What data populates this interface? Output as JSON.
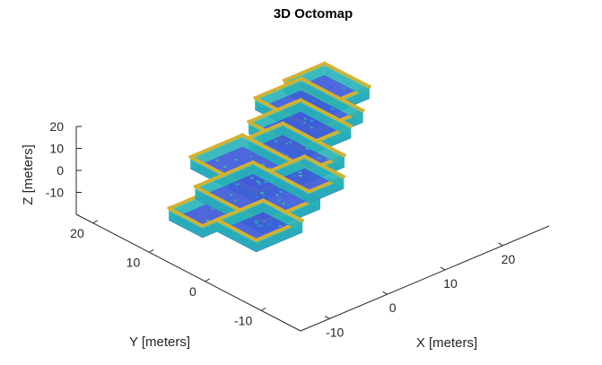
{
  "chart_data": {
    "type": "scatter",
    "subtype": "3d-voxel-occupancy-map",
    "title": "3D Octomap",
    "xlabel": "X [meters]",
    "ylabel": "Y [meters]",
    "zlabel": "Z [meters]",
    "x_ticks": [
      "-10",
      "0",
      "10",
      "20"
    ],
    "y_ticks": [
      "-10",
      "0",
      "10",
      "20"
    ],
    "z_ticks": [
      "-10",
      "0",
      "10",
      "20"
    ],
    "xlim": [
      -15,
      28
    ],
    "ylim": [
      -17,
      23
    ],
    "zlim": [
      -20,
      20
    ],
    "grid": false,
    "colormap": [
      "#3b4fd6",
      "#3f66e0",
      "#2f86d8",
      "#22b0c0",
      "#3cc39a",
      "#c9b43a",
      "#e0b52e"
    ],
    "floor_color": "#3f5ad9",
    "wall_color": "#d8b02c",
    "rooms": [
      {
        "x0": -14.5,
        "x1": -8,
        "y0": 1,
        "y1": 7
      },
      {
        "x0": -12,
        "x1": -4,
        "y0": -6,
        "y1": 1
      },
      {
        "x0": -8,
        "x1": 2,
        "y0": -3,
        "y1": 9
      },
      {
        "x0": -3,
        "x1": 6,
        "y0": 3,
        "y1": 15
      },
      {
        "x0": 2,
        "x1": 8,
        "y0": -1,
        "y1": 6
      },
      {
        "x0": 6,
        "x1": 12,
        "y0": 3,
        "y1": 14
      },
      {
        "x0": 9,
        "x1": 18,
        "y0": 8,
        "y1": 17
      },
      {
        "x0": 14,
        "x1": 22,
        "y0": 10,
        "y1": 21
      },
      {
        "x0": 20,
        "x1": 27,
        "y0": 14,
        "y1": 22
      }
    ]
  }
}
